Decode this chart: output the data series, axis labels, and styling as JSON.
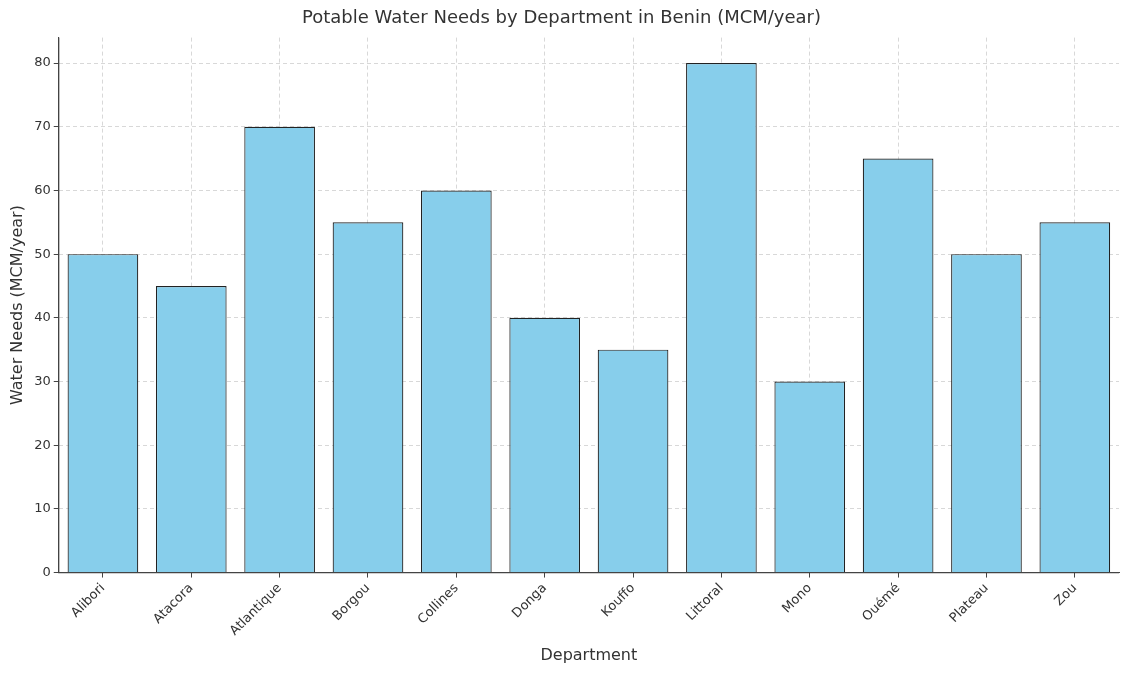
{
  "chart_data": {
    "type": "bar",
    "title": "Potable Water Needs by Department in Benin (MCM/year)",
    "xlabel": "Department",
    "ylabel": "Water Needs (MCM/year)",
    "categories": [
      "Alibori",
      "Atacora",
      "Atlantique",
      "Borgou",
      "Collines",
      "Donga",
      "Kouffo",
      "Littoral",
      "Mono",
      "Ouémé",
      "Plateau",
      "Zou"
    ],
    "values": [
      50,
      45,
      70,
      55,
      60,
      40,
      35,
      80,
      30,
      65,
      50,
      55
    ],
    "color": "#87ceeb",
    "ylim": [
      0,
      84
    ],
    "yticks": [
      0,
      10,
      20,
      30,
      40,
      50,
      60,
      70,
      80
    ],
    "grid": true
  }
}
